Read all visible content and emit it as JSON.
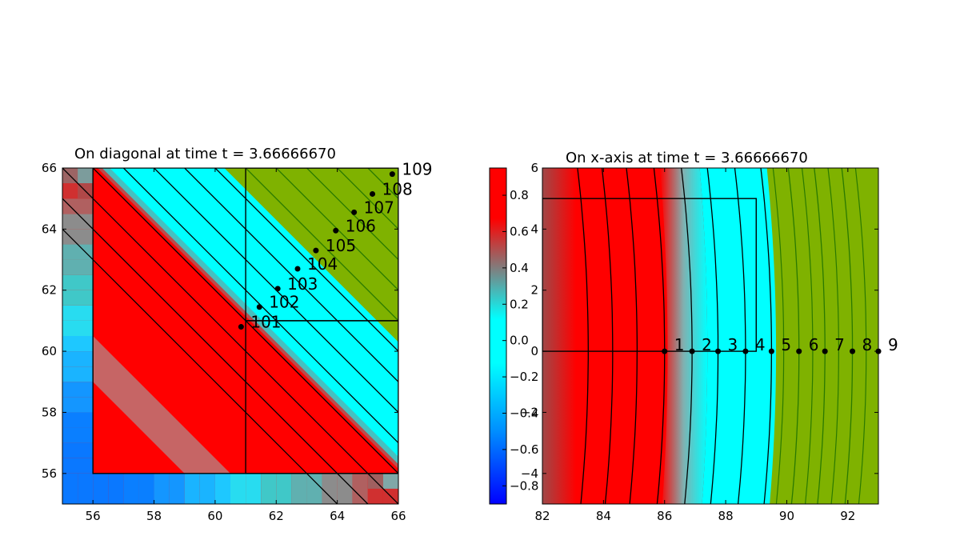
{
  "colors": {
    "red": "#ff0000",
    "cyan": "#00ffff",
    "green": "#7fb200",
    "blue_dark": "#0000ff",
    "contour_black": "#000000",
    "contour_green": "#2a7a00"
  },
  "chart_data": [
    {
      "type": "heatmap",
      "title": "On diagonal at time t =      3.66666670",
      "xlim": [
        55,
        66
      ],
      "ylim": [
        55,
        66
      ],
      "xticks": [
        "56",
        "58",
        "60",
        "62",
        "64",
        "66"
      ],
      "yticks": [
        "56",
        "58",
        "60",
        "62",
        "64",
        "66"
      ],
      "points": [
        {
          "label": "101",
          "x": 60.85,
          "y": 60.8
        },
        {
          "label": "102",
          "x": 61.45,
          "y": 61.45
        },
        {
          "label": "103",
          "x": 62.05,
          "y": 62.05
        },
        {
          "label": "104",
          "x": 62.7,
          "y": 62.7
        },
        {
          "label": "105",
          "x": 63.3,
          "y": 63.3
        },
        {
          "label": "106",
          "x": 63.95,
          "y": 63.95
        },
        {
          "label": "107",
          "x": 64.55,
          "y": 64.55
        },
        {
          "label": "108",
          "x": 65.15,
          "y": 65.15
        },
        {
          "label": "109",
          "x": 65.8,
          "y": 65.8
        }
      ],
      "diagonal_contours": [
        119,
        120,
        121,
        122,
        123,
        124,
        125,
        126,
        127,
        128,
        129,
        130,
        131
      ],
      "grid_boxes": [
        {
          "x0": 56,
          "x1": 66,
          "y0": 56,
          "y1": 66
        },
        {
          "x0": 61,
          "x1": 66,
          "y0": 56,
          "y1": 61
        },
        {
          "x0": 61,
          "x1": 66,
          "y0": 61,
          "y1": 66
        }
      ]
    },
    {
      "type": "heatmap",
      "title": "On x-axis at time t =      3.66666670",
      "xlim": [
        82,
        93
      ],
      "ylim": [
        -5,
        6
      ],
      "xticks": [
        "82",
        "84",
        "86",
        "88",
        "90",
        "92"
      ],
      "yticks": [
        "−4",
        "−2",
        "0",
        "2",
        "4",
        "6"
      ],
      "yticks_values": [
        -4,
        -2,
        0,
        2,
        4,
        6
      ],
      "points": [
        {
          "label": "1",
          "x": 86.0,
          "y": 0
        },
        {
          "label": "2",
          "x": 86.9,
          "y": 0
        },
        {
          "label": "3",
          "x": 87.75,
          "y": 0
        },
        {
          "label": "4",
          "x": 88.65,
          "y": 0
        },
        {
          "label": "5",
          "x": 89.5,
          "y": 0
        },
        {
          "label": "6",
          "x": 90.4,
          "y": 0
        },
        {
          "label": "7",
          "x": 91.25,
          "y": 0
        },
        {
          "label": "8",
          "x": 92.15,
          "y": 0
        },
        {
          "label": "9",
          "x": 93.0,
          "y": 0
        }
      ],
      "contours_x": [
        83.5,
        84.3,
        85.1,
        86.0,
        86.9,
        87.75,
        88.65,
        89.5,
        90.4,
        91.25,
        92.15
      ],
      "grid_box": {
        "x0": 82,
        "x1": 89,
        "y0": 0,
        "y1": 5
      },
      "colorbar": {
        "range": [
          -0.9,
          0.95
        ],
        "ticks": [
          "−0.8",
          "−0.6",
          "−0.4",
          "−0.2",
          "0.0",
          "0.2",
          "0.4",
          "0.6",
          "0.8"
        ],
        "tick_values": [
          -0.8,
          -0.6,
          -0.4,
          -0.2,
          0.0,
          0.2,
          0.4,
          0.6,
          0.8
        ]
      }
    }
  ]
}
